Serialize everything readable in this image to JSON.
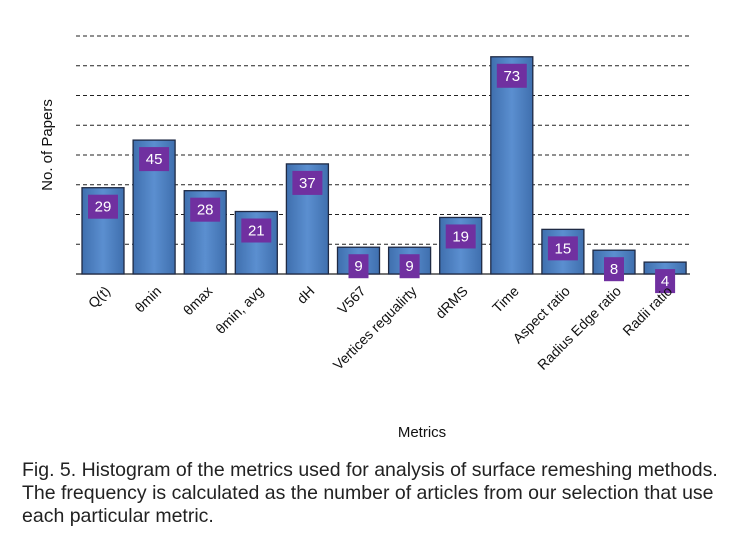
{
  "chart_data": {
    "type": "bar",
    "categories": [
      "Q(t)",
      "θmin",
      "θmax",
      "θmin, avg",
      "dH",
      "V567",
      "Vertices regualirty",
      "dRMS",
      "Time",
      "Aspect ratio",
      "Radius Edge ratio",
      "Radii ratio"
    ],
    "values": [
      29,
      45,
      28,
      21,
      37,
      9,
      9,
      19,
      73,
      15,
      8,
      4
    ],
    "xlabel": "Metrics",
    "ylabel": "No. of Papers",
    "ylim": [
      0,
      82
    ],
    "grid": true,
    "data_labels": true
  },
  "colors": {
    "bar": "#4f81bd",
    "bar_edge": "#1f2a44",
    "label_box": "#7030a0",
    "grid": "#222222"
  },
  "caption": "Fig. 5. Histogram of the metrics used for analysis of surface remeshing methods. The frequency is calculated as the number of articles from our selection that use each particular metric."
}
